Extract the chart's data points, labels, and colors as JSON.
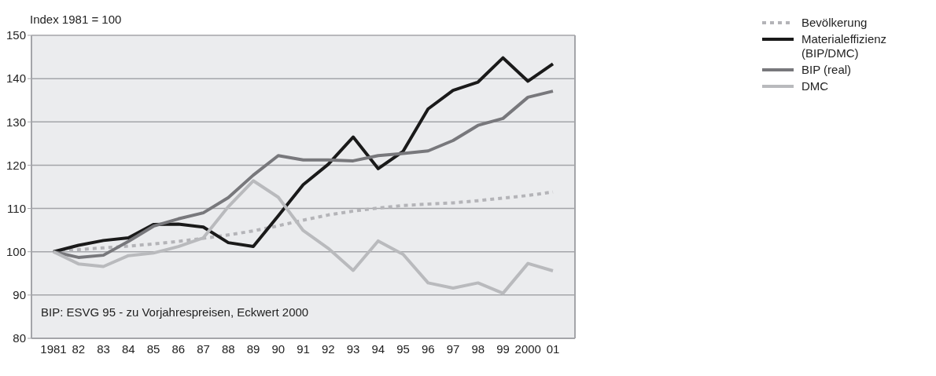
{
  "chart_data": {
    "type": "line",
    "ylabel": "Index 1981 = 100",
    "categories": [
      "1981",
      "82",
      "83",
      "84",
      "85",
      "86",
      "87",
      "88",
      "89",
      "90",
      "91",
      "92",
      "93",
      "94",
      "95",
      "96",
      "97",
      "98",
      "99",
      "2000",
      "01"
    ],
    "series": [
      {
        "name": "Bevölkerung",
        "color": "#b4b4b8",
        "line_style": "dotted",
        "values": [
          100,
          100.5,
          100.9,
          101.3,
          101.8,
          102.4,
          103.1,
          103.9,
          104.8,
          106.0,
          107.3,
          108.5,
          109.4,
          110.1,
          110.7,
          111.0,
          111.3,
          111.8,
          112.4,
          113.0,
          113.8
        ]
      },
      {
        "name": "Materialeffizienz (BIP/DMC)",
        "color": "#1a1a1a",
        "line_style": "solid",
        "values": [
          100,
          101.5,
          102.6,
          103.2,
          106.3,
          106.4,
          105.7,
          102.1,
          101.2,
          108.3,
          115.5,
          120.2,
          126.5,
          119.2,
          123.2,
          133.0,
          137.3,
          139.2,
          144.8,
          139.4,
          143.4
        ]
      },
      {
        "name": "BIP (real)",
        "color": "#78787c",
        "line_style": "solid",
        "values": [
          100,
          98.7,
          99.2,
          102.4,
          105.9,
          107.6,
          109.0,
          112.5,
          117.7,
          122.2,
          121.2,
          121.2,
          121.0,
          122.2,
          122.7,
          123.3,
          125.7,
          129.2,
          130.8,
          135.7,
          137.1
        ]
      },
      {
        "name": "DMC",
        "color": "#b9babd",
        "line_style": "solid",
        "values": [
          100,
          97.2,
          96.6,
          99.1,
          99.7,
          101.2,
          103.2,
          110.4,
          116.4,
          112.6,
          104.9,
          100.8,
          95.7,
          102.5,
          99.4,
          92.8,
          91.6,
          92.8,
          90.4,
          97.3,
          95.6
        ]
      }
    ],
    "ylim": [
      80,
      150
    ],
    "yticks": [
      80,
      90,
      100,
      110,
      120,
      130,
      140,
      150
    ],
    "grid": "y",
    "legend": "top right",
    "marker": "none",
    "annotations": [
      "BIP: ESVG 95 - zu Vorjahrespreisen, Eckwert 2000"
    ]
  }
}
